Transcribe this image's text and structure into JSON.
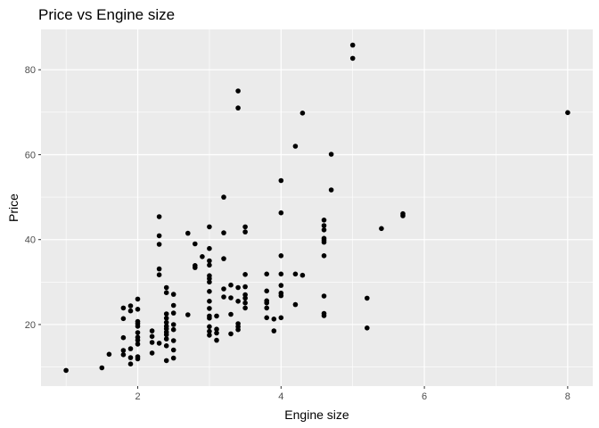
{
  "chart_data": {
    "type": "scatter",
    "title": "Price vs Engine size",
    "xlabel": "Engine size",
    "ylabel": "Price",
    "xlim": [
      0.65,
      8.35
    ],
    "ylim": [
      5.5,
      89.5
    ],
    "x_ticks": [
      2,
      4,
      6,
      8
    ],
    "y_ticks": [
      20,
      40,
      60,
      80
    ],
    "x_tick_labels": [
      "2",
      "4",
      "6",
      "8"
    ],
    "y_tick_labels": [
      "20",
      "40",
      "60",
      "80"
    ],
    "grid": true,
    "panel_color": "#ebebeb",
    "grid_color": "#ffffff",
    "point_color": "#000000",
    "points": [
      [
        1.0,
        9.2
      ],
      [
        1.5,
        9.8
      ],
      [
        1.6,
        13.0
      ],
      [
        1.8,
        12.9
      ],
      [
        1.8,
        13.9
      ],
      [
        1.8,
        16.9
      ],
      [
        1.8,
        21.4
      ],
      [
        1.8,
        23.9
      ],
      [
        1.9,
        10.7
      ],
      [
        1.9,
        12.2
      ],
      [
        1.9,
        14.3
      ],
      [
        1.9,
        23.2
      ],
      [
        1.9,
        24.4
      ],
      [
        2.0,
        11.9
      ],
      [
        2.0,
        12.4
      ],
      [
        2.0,
        15.4
      ],
      [
        2.0,
        16.3
      ],
      [
        2.0,
        17.0
      ],
      [
        2.0,
        18.1
      ],
      [
        2.0,
        19.6
      ],
      [
        2.0,
        20.2
      ],
      [
        2.0,
        20.7
      ],
      [
        2.0,
        23.6
      ],
      [
        2.0,
        26.0
      ],
      [
        2.2,
        13.3
      ],
      [
        2.2,
        15.8
      ],
      [
        2.2,
        17.2
      ],
      [
        2.2,
        18.5
      ],
      [
        2.3,
        15.6
      ],
      [
        2.3,
        31.7
      ],
      [
        2.3,
        33.1
      ],
      [
        2.3,
        38.9
      ],
      [
        2.3,
        40.9
      ],
      [
        2.3,
        45.4
      ],
      [
        2.4,
        11.5
      ],
      [
        2.4,
        15.0
      ],
      [
        2.4,
        16.6
      ],
      [
        2.4,
        17.6
      ],
      [
        2.4,
        18.2
      ],
      [
        2.4,
        19.0
      ],
      [
        2.4,
        19.6
      ],
      [
        2.4,
        20.5
      ],
      [
        2.4,
        21.5
      ],
      [
        2.4,
        22.5
      ],
      [
        2.4,
        27.5
      ],
      [
        2.4,
        28.7
      ],
      [
        2.5,
        12.1
      ],
      [
        2.5,
        14.0
      ],
      [
        2.5,
        16.2
      ],
      [
        2.5,
        18.8
      ],
      [
        2.5,
        20.0
      ],
      [
        2.5,
        22.7
      ],
      [
        2.5,
        24.5
      ],
      [
        2.5,
        27.1
      ],
      [
        2.7,
        22.3
      ],
      [
        2.7,
        41.5
      ],
      [
        2.8,
        33.4
      ],
      [
        2.8,
        33.9
      ],
      [
        2.8,
        39.0
      ],
      [
        2.9,
        36.0
      ],
      [
        3.0,
        17.5
      ],
      [
        3.0,
        18.4
      ],
      [
        3.0,
        19.5
      ],
      [
        3.0,
        21.5
      ],
      [
        3.0,
        22.0
      ],
      [
        3.0,
        23.8
      ],
      [
        3.0,
        25.5
      ],
      [
        3.0,
        27.8
      ],
      [
        3.0,
        30.0
      ],
      [
        3.0,
        30.8
      ],
      [
        3.0,
        31.5
      ],
      [
        3.0,
        34.0
      ],
      [
        3.0,
        35.0
      ],
      [
        3.0,
        37.9
      ],
      [
        3.0,
        43.0
      ],
      [
        3.1,
        16.3
      ],
      [
        3.1,
        18.0
      ],
      [
        3.1,
        18.9
      ],
      [
        3.1,
        22.0
      ],
      [
        3.2,
        26.5
      ],
      [
        3.2,
        28.4
      ],
      [
        3.2,
        35.5
      ],
      [
        3.2,
        41.6
      ],
      [
        3.2,
        50.0
      ],
      [
        3.3,
        17.8
      ],
      [
        3.3,
        22.4
      ],
      [
        3.3,
        26.3
      ],
      [
        3.3,
        29.3
      ],
      [
        3.4,
        18.8
      ],
      [
        3.4,
        19.5
      ],
      [
        3.4,
        20.2
      ],
      [
        3.4,
        25.5
      ],
      [
        3.4,
        28.7
      ],
      [
        3.4,
        71.0
      ],
      [
        3.4,
        75.0
      ],
      [
        3.5,
        23.9
      ],
      [
        3.5,
        25.1
      ],
      [
        3.5,
        26.2
      ],
      [
        3.5,
        27.0
      ],
      [
        3.5,
        28.9
      ],
      [
        3.5,
        31.8
      ],
      [
        3.5,
        41.8
      ],
      [
        3.5,
        43.0
      ],
      [
        3.8,
        21.6
      ],
      [
        3.8,
        23.9
      ],
      [
        3.8,
        25.1
      ],
      [
        3.8,
        25.6
      ],
      [
        3.8,
        27.9
      ],
      [
        3.8,
        31.9
      ],
      [
        3.9,
        18.5
      ],
      [
        3.9,
        21.3
      ],
      [
        4.0,
        21.6
      ],
      [
        4.0,
        26.8
      ],
      [
        4.0,
        27.4
      ],
      [
        4.0,
        29.2
      ],
      [
        4.0,
        31.9
      ],
      [
        4.0,
        36.2
      ],
      [
        4.0,
        46.3
      ],
      [
        4.0,
        53.9
      ],
      [
        4.2,
        24.7
      ],
      [
        4.2,
        31.9
      ],
      [
        4.2,
        62.0
      ],
      [
        4.3,
        31.6
      ],
      [
        4.3,
        69.8
      ],
      [
        4.6,
        22.1
      ],
      [
        4.6,
        22.6
      ],
      [
        4.6,
        26.7
      ],
      [
        4.6,
        36.2
      ],
      [
        4.6,
        39.4
      ],
      [
        4.6,
        39.9
      ],
      [
        4.6,
        40.3
      ],
      [
        4.6,
        42.3
      ],
      [
        4.6,
        43.3
      ],
      [
        4.6,
        44.6
      ],
      [
        4.7,
        51.7
      ],
      [
        4.7,
        60.1
      ],
      [
        5.0,
        82.7
      ],
      [
        5.0,
        85.8
      ],
      [
        5.2,
        19.2
      ],
      [
        5.2,
        26.2
      ],
      [
        5.4,
        42.6
      ],
      [
        5.7,
        45.6
      ],
      [
        5.7,
        46.1
      ],
      [
        8.0,
        69.9
      ]
    ]
  }
}
